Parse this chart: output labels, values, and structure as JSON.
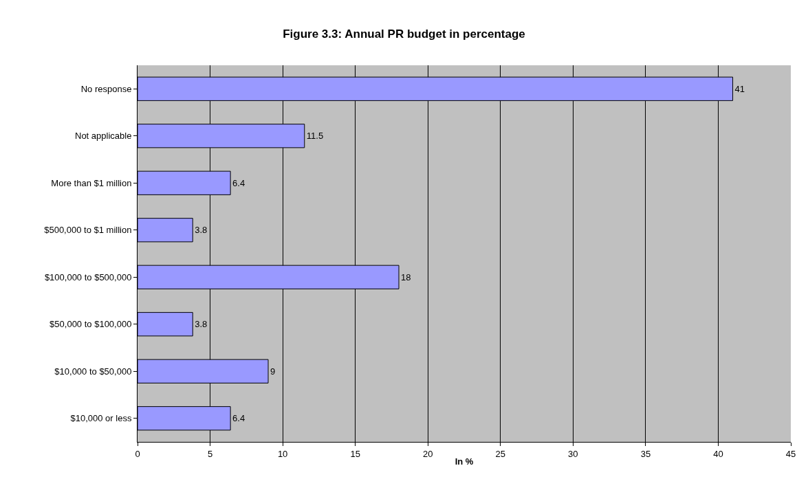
{
  "chart_data": {
    "type": "bar",
    "orientation": "horizontal",
    "title": "Figure 3.3: Annual PR budget in percentage",
    "xlabel": "In %",
    "categories": [
      "No response",
      "Not applicable",
      "More than $1 million",
      "$500,000 to $1 million",
      "$100,000 to $500,000",
      "$50,000 to $100,000",
      "$10,000 to $50,000",
      "$10,000 or less"
    ],
    "values": [
      41,
      11.5,
      6.4,
      3.8,
      18,
      3.8,
      9,
      6.4
    ],
    "color": "#9999ff",
    "xlim": [
      0,
      45
    ],
    "xticks": [
      0,
      5,
      10,
      15,
      20,
      25,
      30,
      35,
      40,
      45
    ],
    "grid": "x",
    "data_labels": true,
    "legend": false
  }
}
